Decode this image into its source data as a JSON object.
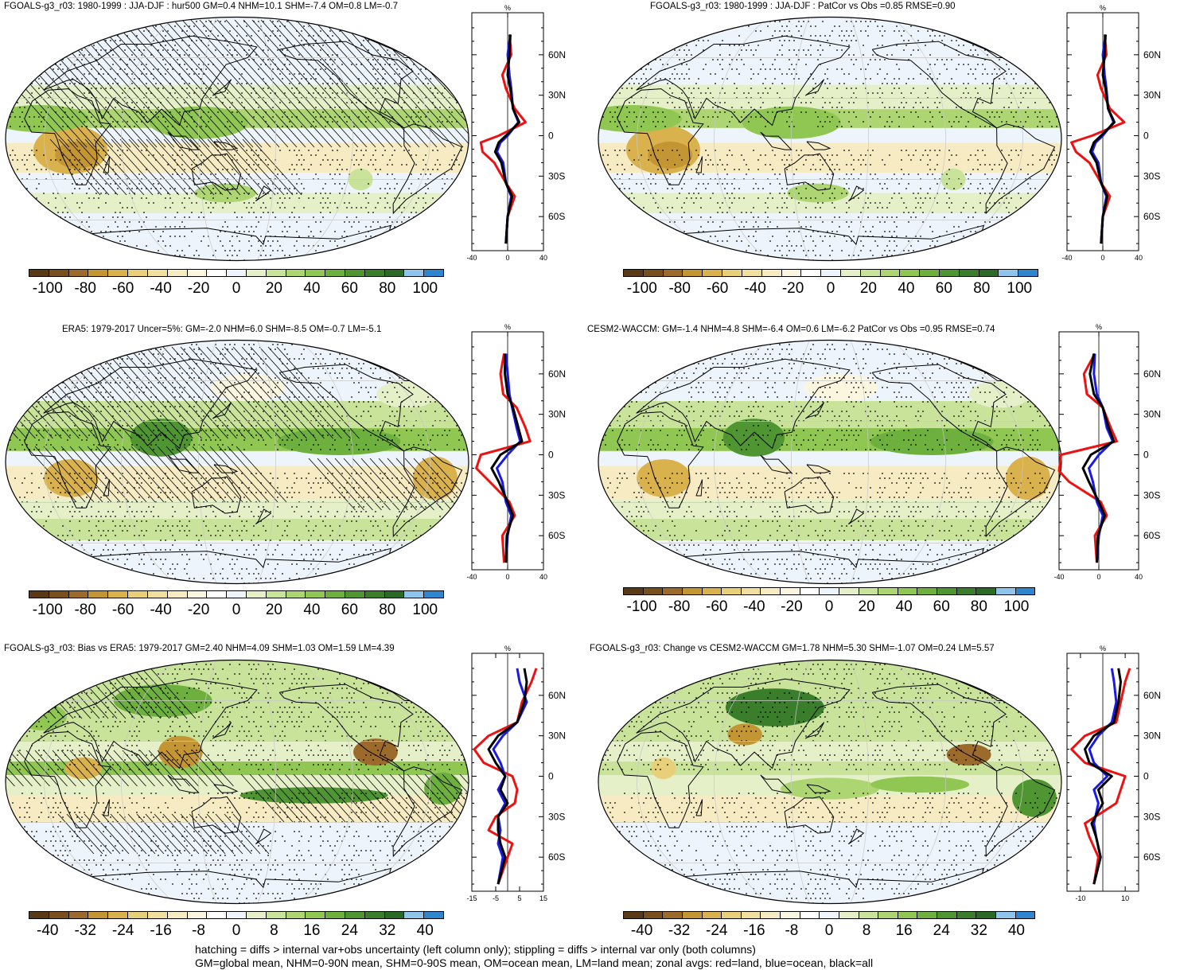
{
  "panels": [
    {
      "id": "p1",
      "title": "FGOALS-g3_r03: 1980-1999 : JJA-DJF : hur500 GM=0.4 NHM=10.1 SHM=-7.4 OM=0.8 LM=-0.7",
      "hatch": true,
      "scheme": "A",
      "cbar_labels": [
        "-100",
        "-80",
        "-60",
        "-40",
        "-20",
        "0",
        "20",
        "40",
        "60",
        "80",
        "100"
      ],
      "zonal": {
        "unit": "%",
        "xticks": [
          "-40",
          "0",
          "40"
        ],
        "xlim": [
          -40,
          40
        ],
        "lat_labels": [
          "60N",
          "30N",
          "0",
          "30S",
          "60S"
        ]
      }
    },
    {
      "id": "p2",
      "title": "FGOALS-g3_r03: 1980-1999 : JJA-DJF : PatCor vs Obs =0.85 RMSE=0.90",
      "hatch": false,
      "scheme": "A",
      "cbar_labels": [
        "-100",
        "-80",
        "-60",
        "-40",
        "-20",
        "0",
        "20",
        "40",
        "60",
        "80",
        "100"
      ],
      "zonal": {
        "unit": "%",
        "xticks": [
          "-40",
          "0",
          "40"
        ],
        "xlim": [
          -40,
          40
        ],
        "lat_labels": [
          "60N",
          "30N",
          "0",
          "30S",
          "60S"
        ]
      }
    },
    {
      "id": "p3",
      "title": "ERA5: 1979-2017 Uncer=5%: GM=-2.0 NHM=6.0 SHM=-8.5 OM=-0.7 LM=-5.1",
      "hatch": true,
      "scheme": "B",
      "cbar_labels": [
        "-100",
        "-80",
        "-60",
        "-40",
        "-20",
        "0",
        "20",
        "40",
        "60",
        "80",
        "100"
      ],
      "zonal": {
        "unit": "%",
        "xticks": [
          "-40",
          "0",
          "40"
        ],
        "xlim": [
          -40,
          40
        ],
        "lat_labels": [
          "60N",
          "30N",
          "0",
          "30S",
          "60S"
        ]
      }
    },
    {
      "id": "p4",
      "title": "CESM2-WACCM: GM=-1.4 NHM=4.8 SHM=-6.4 OM=0.6 LM=-6.2 PatCor vs Obs =0.95 RMSE=0.74",
      "hatch": false,
      "scheme": "B",
      "cbar_labels": [
        "-100",
        "-80",
        "-60",
        "-40",
        "-20",
        "0",
        "20",
        "40",
        "60",
        "80",
        "100"
      ],
      "zonal": {
        "unit": "%",
        "xticks": [
          "-40",
          "0",
          "40"
        ],
        "xlim": [
          -40,
          40
        ],
        "lat_labels": [
          "60N",
          "30N",
          "0",
          "30S",
          "60S"
        ]
      }
    },
    {
      "id": "p5",
      "title": "FGOALS-g3_r03: Bias vs ERA5: 1979-2017 GM=2.40 NHM=4.09 SHM=1.03 OM=1.59 LM=4.39",
      "hatch": true,
      "scheme": "C",
      "cbar_labels": [
        "-40",
        "-32",
        "-24",
        "-16",
        "-8",
        "0",
        "8",
        "16",
        "24",
        "32",
        "40"
      ],
      "zonal": {
        "unit": "%",
        "xticks": [
          "-15",
          "-5",
          "5",
          "15"
        ],
        "xlim": [
          -15,
          15
        ],
        "lat_labels": [
          "60N",
          "30N",
          "0",
          "30S",
          "60S"
        ]
      }
    },
    {
      "id": "p6",
      "title": "FGOALS-g3_r03: Change vs CESM2-WACCM GM=1.78 NHM=5.30 SHM=-1.07 OM=0.24 LM=5.57",
      "hatch": false,
      "scheme": "D",
      "cbar_labels": [
        "-40",
        "-32",
        "-24",
        "-16",
        "-8",
        "0",
        "8",
        "16",
        "24",
        "32",
        "40"
      ],
      "zonal": {
        "unit": "%",
        "xticks": [
          "-10",
          "10"
        ],
        "xlim": [
          -16,
          16
        ],
        "lat_labels": [
          "60N",
          "30N",
          "0",
          "30S",
          "60S"
        ]
      }
    }
  ],
  "colorbar_colors": [
    "#5a3a16",
    "#7a4f1e",
    "#9c6a2a",
    "#c49633",
    "#d9b24e",
    "#e8cf7a",
    "#f0df9e",
    "#f6ebc2",
    "#fbf6e0",
    "#ffffff",
    "#eef4fb",
    "#e5f0c9",
    "#c9e39a",
    "#add672",
    "#8fc752",
    "#6eb03e",
    "#4f9632",
    "#3a7e2c",
    "#2a6a26",
    "#8fc5ec",
    "#2f86cf"
  ],
  "line_colors": {
    "land": "#ee1111",
    "ocean": "#1a1ae6",
    "all": "#000000"
  },
  "footer": {
    "line1": "hatching = diffs > internal var+obs uncertainty (left column only); stippling = diffs > internal var only (both columns)",
    "line2": "GM=global mean, NHM=0-90N mean, SHM=0-90S mean, OM=ocean mean, LM=land mean; zonal avgs: red=land, blue=ocean, black=all"
  }
}
